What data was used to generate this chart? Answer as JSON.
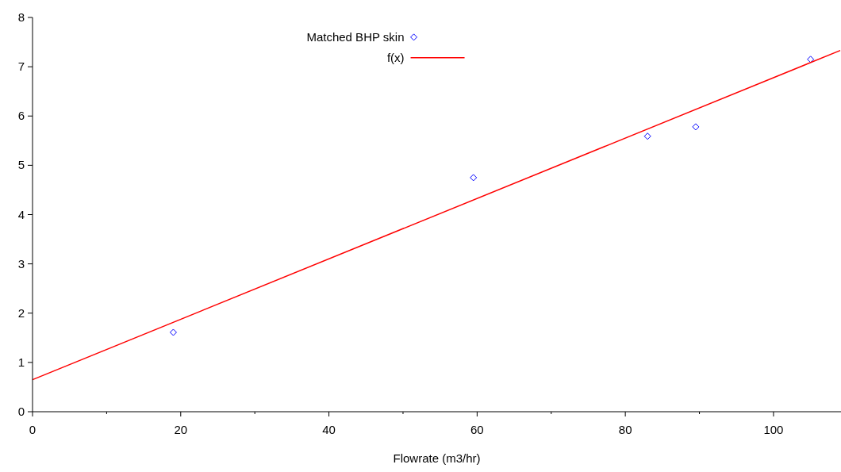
{
  "chart_data": {
    "type": "scatter",
    "xlabel": "Flowrate (m3/hr)",
    "xlim": [
      0,
      109
    ],
    "ylim": [
      0,
      8
    ],
    "xticks": [
      0,
      {
        "value": 10,
        "label": null
      },
      20,
      {
        "value": 30,
        "label": null
      },
      40,
      {
        "value": 50,
        "label": null
      },
      60,
      {
        "value": 70,
        "label": null
      },
      80,
      {
        "value": 90,
        "label": null
      },
      100
    ],
    "yticks": [
      0,
      1,
      2,
      3,
      4,
      5,
      6,
      7,
      8
    ],
    "grid": false,
    "legend": "top",
    "series": [
      {
        "name": "Matched BHP skin",
        "color": "#0000ff",
        "marker": "diamond",
        "x": [
          19,
          59.5,
          83,
          89.5,
          105
        ],
        "values": [
          1.61,
          4.75,
          5.59,
          5.78,
          7.15
        ]
      },
      {
        "name": "f(x)",
        "type": "line",
        "color": "#ff0000",
        "marker": "none",
        "x": [
          0,
          109
        ],
        "values": [
          0.65,
          7.33
        ]
      }
    ]
  }
}
